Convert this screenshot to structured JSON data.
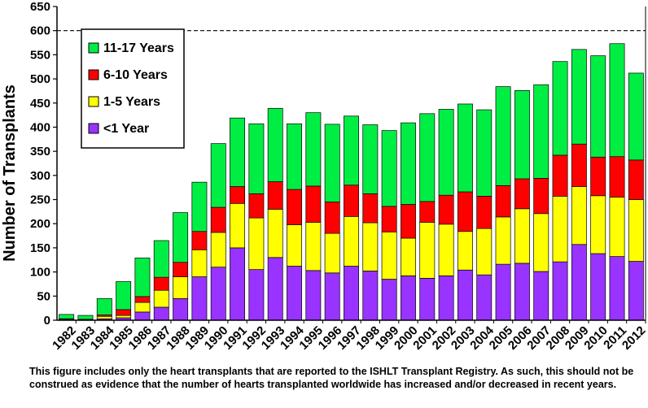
{
  "chart_data": {
    "type": "bar",
    "stacked": true,
    "title": "",
    "xlabel": "",
    "ylabel": "Number of Transplants",
    "ylim": [
      0,
      650
    ],
    "yticks": [
      0,
      50,
      100,
      150,
      200,
      250,
      300,
      350,
      400,
      450,
      500,
      550,
      600,
      650
    ],
    "gridlines": [
      600
    ],
    "categories": [
      "1982",
      "1983",
      "1984",
      "1985",
      "1986",
      "1987",
      "1988",
      "1989",
      "1990",
      "1991",
      "1992",
      "1993",
      "1994",
      "1995",
      "1996",
      "1997",
      "1998",
      "1999",
      "2000",
      "2001",
      "2002",
      "2003",
      "2004",
      "2005",
      "2006",
      "2007",
      "2008",
      "2009",
      "2010",
      "2011",
      "2012"
    ],
    "series": [
      {
        "name": "<1 Year",
        "color": "#9933ff",
        "values": [
          2,
          1,
          3,
          5,
          17,
          27,
          45,
          90,
          110,
          150,
          105,
          130,
          112,
          103,
          98,
          112,
          102,
          85,
          92,
          87,
          92,
          104,
          94,
          116,
          118,
          101,
          121,
          157,
          138,
          132,
          122
        ]
      },
      {
        "name": "1-5 Years",
        "color": "#ffff00",
        "values": [
          1,
          1,
          5,
          5,
          20,
          35,
          45,
          56,
          72,
          92,
          107,
          100,
          86,
          100,
          82,
          103,
          100,
          98,
          78,
          116,
          107,
          80,
          96,
          98,
          113,
          120,
          136,
          120,
          120,
          123,
          128
        ]
      },
      {
        "name": "6-10 Years",
        "color": "#ff0000",
        "values": [
          0,
          0,
          3,
          12,
          12,
          27,
          30,
          38,
          52,
          35,
          50,
          57,
          73,
          75,
          65,
          65,
          60,
          53,
          70,
          43,
          60,
          82,
          67,
          65,
          62,
          73,
          85,
          88,
          80,
          84,
          82
        ]
      },
      {
        "name": "11-17 Years",
        "color": "#00ee44",
        "values": [
          9,
          8,
          34,
          58,
          80,
          76,
          103,
          102,
          132,
          142,
          145,
          152,
          136,
          152,
          161,
          143,
          143,
          157,
          169,
          182,
          178,
          182,
          179,
          205,
          183,
          194,
          194,
          196,
          210,
          234,
          180
        ]
      }
    ],
    "legend": {
      "position": "top-left",
      "entries": [
        {
          "label": "11-17 Years",
          "color": "#00ee44"
        },
        {
          "label": "6-10 Years",
          "color": "#ff0000"
        },
        {
          "label": "1-5 Years",
          "color": "#ffff00"
        },
        {
          "label": "<1 Year",
          "color": "#9933ff"
        }
      ]
    }
  },
  "footnote": "This figure includes only the heart transplants that are reported to the ISHLT Transplant Registry.  As such, this should not be construed as evidence that the number of hearts transplanted worldwide has increased and/or decreased in recent years."
}
